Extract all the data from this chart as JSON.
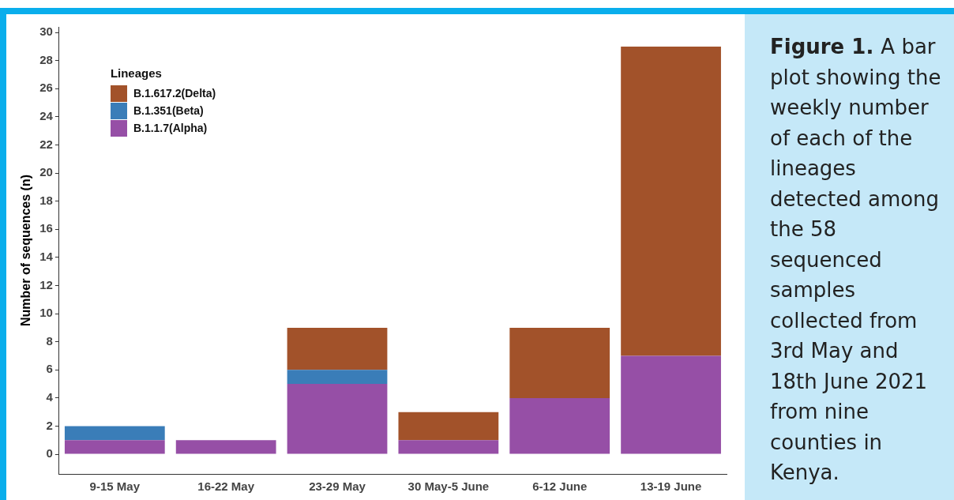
{
  "chart_data": {
    "type": "bar",
    "stacked": true,
    "ylabel": "Number of sequences (n)",
    "legend_title": "Lineages",
    "legend": "top left",
    "grid": false,
    "categories": [
      "9-15 May",
      "16-22 May",
      "23-29 May",
      "30 May-5 June",
      "6-12 June",
      "13-19 June"
    ],
    "series": [
      {
        "name": "B.1.1.7(Alpha)",
        "color": "#964fa6",
        "values": [
          1,
          1,
          5,
          1,
          4,
          7
        ]
      },
      {
        "name": "B.1.351(Beta)",
        "color": "#3a7db8",
        "values": [
          1,
          0,
          1,
          0,
          0,
          0
        ]
      },
      {
        "name": "B.1.617.2(Delta)",
        "color": "#a2522a",
        "values": [
          0,
          0,
          3,
          2,
          5,
          22
        ]
      }
    ],
    "ylim": [
      -1.4,
      30.4
    ],
    "yticks": [
      0,
      2,
      4,
      6,
      8,
      10,
      12,
      14,
      16,
      18,
      20,
      22,
      24,
      26,
      28,
      30
    ],
    "annotations": [
      "Figure 1.",
      "A bar plot showing the weekly number of each of the lineages detected among the 58 sequenced samples collected from 3rd May and 18th June 2021 from nine counties in Kenya."
    ]
  }
}
